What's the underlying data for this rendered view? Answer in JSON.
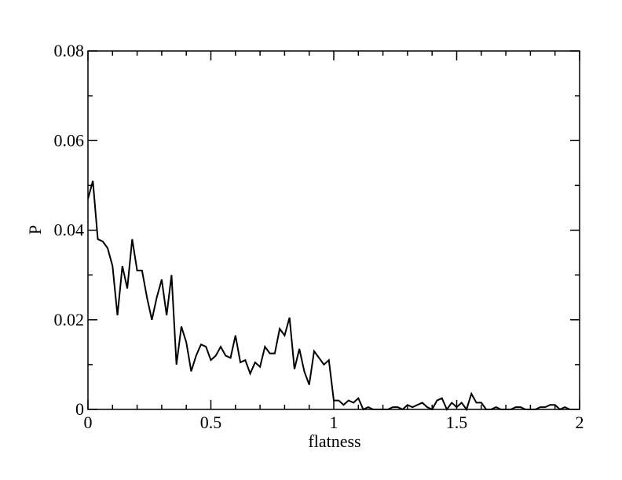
{
  "chart_data": {
    "type": "line",
    "xlabel": "flatness",
    "ylabel": "P",
    "color": "#000000",
    "x": [
      0,
      0.02,
      0.04,
      0.06,
      0.08,
      0.1,
      0.12,
      0.14,
      0.16,
      0.18,
      0.2,
      0.22,
      0.24,
      0.26,
      0.28,
      0.3,
      0.32,
      0.34,
      0.36,
      0.38,
      0.4,
      0.42,
      0.44,
      0.46,
      0.48,
      0.5,
      0.52,
      0.54,
      0.56,
      0.58,
      0.6,
      0.62,
      0.64,
      0.66,
      0.68,
      0.7,
      0.72,
      0.74,
      0.76,
      0.78,
      0.8,
      0.82,
      0.84,
      0.86,
      0.88,
      0.9,
      0.92,
      0.94,
      0.96,
      0.98,
      1,
      1.02,
      1.04,
      1.06,
      1.08,
      1.1,
      1.12,
      1.14,
      1.16,
      1.18,
      1.2,
      1.22,
      1.24,
      1.26,
      1.28,
      1.3,
      1.32,
      1.34,
      1.36,
      1.38,
      1.4,
      1.42,
      1.44,
      1.46,
      1.48,
      1.5,
      1.52,
      1.54,
      1.56,
      1.58,
      1.6,
      1.62,
      1.64,
      1.66,
      1.68,
      1.7,
      1.72,
      1.74,
      1.76,
      1.78,
      1.8,
      1.82,
      1.84,
      1.86,
      1.88,
      1.9,
      1.92,
      1.94,
      1.96
    ],
    "values": [
      0.047,
      0.051,
      0.038,
      0.0375,
      0.036,
      0.032,
      0.021,
      0.032,
      0.027,
      0.038,
      0.031,
      0.031,
      0.025,
      0.02,
      0.025,
      0.029,
      0.021,
      0.03,
      0.01,
      0.0185,
      0.015,
      0.0085,
      0.012,
      0.0145,
      0.014,
      0.011,
      0.012,
      0.014,
      0.012,
      0.0115,
      0.0165,
      0.0105,
      0.011,
      0.008,
      0.0105,
      0.0095,
      0.014,
      0.0125,
      0.0125,
      0.018,
      0.0165,
      0.0205,
      0.009,
      0.0135,
      0.0085,
      0.0055,
      0.013,
      0.0115,
      0.01,
      0.011,
      0.002,
      0.002,
      0.001,
      0.002,
      0.0015,
      0.0025,
      0,
      0.0005,
      0,
      0,
      0,
      0,
      0.0005,
      0.0005,
      0,
      0.001,
      0.0005,
      0.001,
      0.0015,
      0.0005,
      0,
      0.002,
      0.0025,
      0,
      0.0015,
      0.0005,
      0.0015,
      0,
      0.0035,
      0.0015,
      0.0015,
      0,
      0,
      0.0005,
      0,
      0,
      0,
      0.0005,
      0.0005,
      0,
      0,
      0,
      0.0005,
      0.0005,
      0.001,
      0.001,
      0,
      0.0005,
      0
    ],
    "xlim": [
      0,
      2
    ],
    "ylim": [
      0,
      0.08
    ],
    "xticks": [
      0,
      0.5,
      1,
      1.5,
      2
    ],
    "yticks": [
      0,
      0.02,
      0.04,
      0.06,
      0.08
    ],
    "xminorticks": [
      0.1,
      0.2,
      0.3,
      0.4,
      0.6,
      0.7,
      0.8,
      0.9,
      1.1,
      1.2,
      1.3,
      1.4,
      1.6,
      1.7,
      1.8,
      1.9
    ],
    "yminorticks": [
      0.01,
      0.03,
      0.05,
      0.07
    ]
  }
}
